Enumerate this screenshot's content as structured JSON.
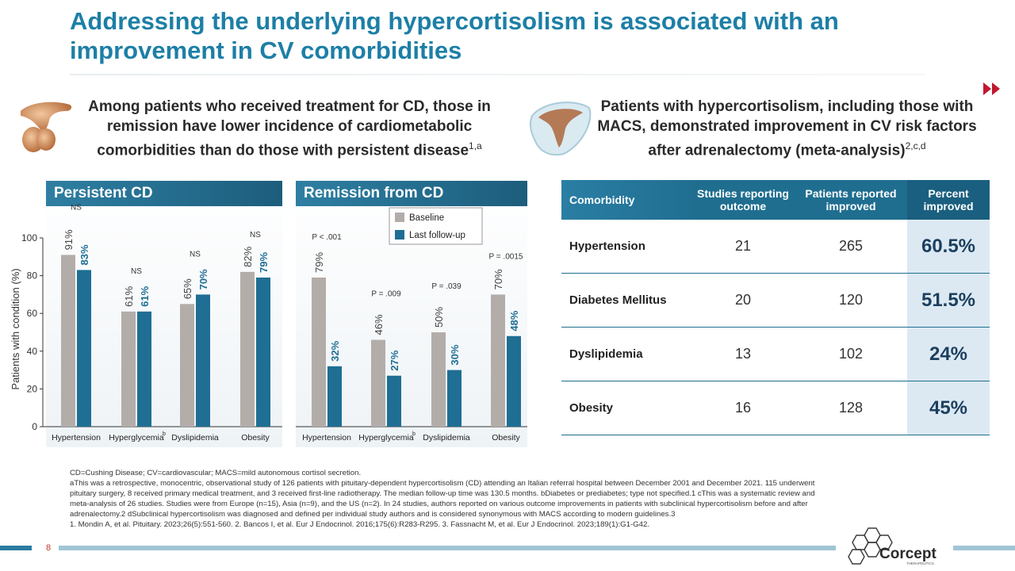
{
  "title": "Addressing the underlying hypercortisolism is associated with an improvement in CV comorbidities",
  "left_subhead": {
    "text": "Among patients who received treatment for CD, those in remission have lower incidence of cardiometabolic comorbidities than do those with persistent disease",
    "sup": "1,a"
  },
  "right_subhead": {
    "text": "Patients with hypercortisolism, including those with MACS, demonstrated improvement in CV risk factors after adrenalectomy (meta-analysis)",
    "sup": "2,c,d"
  },
  "panels": {
    "left_title": "Persistent CD",
    "right_title": "Remission from CD"
  },
  "legend": {
    "baseline": "Baseline",
    "followup": "Last follow-up"
  },
  "colors": {
    "baseline": "#b3adaa",
    "followup": "#1f6e94",
    "accent": "#1d7fa6"
  },
  "chart_data": [
    {
      "type": "bar",
      "title": "Persistent CD",
      "ylabel": "Patients with condition (%)",
      "ylim": [
        0,
        100
      ],
      "yticks": [
        0,
        20,
        40,
        60,
        80,
        100
      ],
      "categories": [
        "Hypertension",
        "Hyperglycemia",
        "Dyslipidemia",
        "Obesity"
      ],
      "category_sups": [
        "",
        "b",
        "",
        ""
      ],
      "series": [
        {
          "name": "Baseline",
          "values": [
            91,
            61,
            65,
            82
          ],
          "labels": [
            "91%",
            "61%",
            "65%",
            "82%"
          ]
        },
        {
          "name": "Last follow-up",
          "values": [
            83,
            61,
            70,
            79
          ],
          "labels": [
            "83%",
            "61%",
            "70%",
            "79%"
          ]
        }
      ],
      "annotations": [
        "NS",
        "NS",
        "NS",
        "NS"
      ]
    },
    {
      "type": "bar",
      "title": "Remission from CD",
      "ylabel": "Patients with condition (%)",
      "ylim": [
        0,
        100
      ],
      "categories": [
        "Hypertension",
        "Hyperglycemia",
        "Dyslipidemia",
        "Obesity"
      ],
      "category_sups": [
        "",
        "b",
        "",
        ""
      ],
      "series": [
        {
          "name": "Baseline",
          "values": [
            79,
            46,
            50,
            70
          ],
          "labels": [
            "79%",
            "46%",
            "50%",
            "70%"
          ]
        },
        {
          "name": "Last follow-up",
          "values": [
            32,
            27,
            30,
            48
          ],
          "labels": [
            "32%",
            "27%",
            "30%",
            "48%"
          ]
        }
      ],
      "annotations": [
        "P < .001",
        "P = .009",
        "P = .039",
        "P = .0015"
      ]
    }
  ],
  "table": {
    "headers": [
      "Comorbidity",
      "Studies reporting outcome",
      "Patients reported improved",
      "Percent improved"
    ],
    "rows": [
      {
        "name": "Hypertension",
        "studies": "21",
        "patients": "265",
        "percent": "60.5%"
      },
      {
        "name": "Diabetes Mellitus",
        "studies": "20",
        "patients": "120",
        "percent": "51.5%"
      },
      {
        "name": "Dyslipidemia",
        "studies": "13",
        "patients": "102",
        "percent": "24%"
      },
      {
        "name": "Obesity",
        "studies": "16",
        "patients": "128",
        "percent": "45%"
      }
    ]
  },
  "footnotes": {
    "abbrev": "CD=Cushing Disease; CV=cardiovascular; MACS=mild autonomous cortisol secretion.",
    "a": "aThis was a retrospective, monocentric, observational study of 126 patients with pituitary-dependent hypercortisolism (CD) attending an Italian referral hospital between December 2001 and December 2021. 115 underwent pituitary surgery, 8 received primary medical treatment, and 3 received first-line radiotherapy. The median follow-up time was 130.5 months. bDiabetes or prediabetes; type not specified.1 cThis was a systematic review and meta-analysis of 26 studies. Studies were from Europe (n=15), Asia (n=9), and the US (n=2). In 24 studies, authors reported on various outcome improvements in patients with subclinical hypercortisolism before and after adrenalectomy.2 dSubclinical hypercortisolism was diagnosed and defined per individual study authors and is considered synonymous with MACS according to modern guidelines.3",
    "refs": "1. Mondin A, et al. Pituitary. 2023;26(5):551-560. 2. Bancos I, et al. Eur J Endocrinol. 2016;175(6):R283-R295. 3. Fassnacht M, et al. Eur J Endocrinol. 2023;189(1):G1-G42."
  },
  "page_number": "8",
  "logo": {
    "name": "Corcept",
    "tagline": "THERAPEUTICS"
  }
}
